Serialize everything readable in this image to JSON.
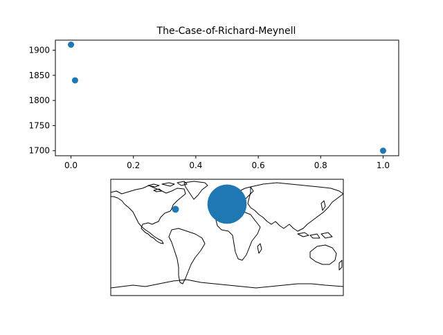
{
  "chart_data": [
    {
      "type": "scatter",
      "title": "The-Case-of-Richard-Meynell",
      "xlabel": "",
      "ylabel": "",
      "x": [
        0.0,
        0.013,
        1.0
      ],
      "y": [
        1911,
        1840,
        1700
      ],
      "xlim": [
        -0.05,
        1.05
      ],
      "ylim": [
        1690,
        1920
      ],
      "xticks": [
        0.0,
        0.2,
        0.4,
        0.6,
        0.8,
        1.0
      ],
      "xtick_labels": [
        "0.0",
        "0.2",
        "0.4",
        "0.6",
        "0.8",
        "1.0"
      ],
      "yticks": [
        1700,
        1750,
        1800,
        1850,
        1900
      ],
      "ytick_labels": [
        "1700",
        "1750",
        "1800",
        "1850",
        "1900"
      ],
      "grid": false,
      "color": "#1f77b4"
    },
    {
      "type": "scatter",
      "title": "",
      "map": "world-coastlines",
      "points": [
        {
          "lon": -79.8,
          "lat": 43.5,
          "weight": 1
        },
        {
          "lon": 0.0,
          "lat": 51.5,
          "weight": 32
        }
      ],
      "color": "#1f77b4"
    }
  ]
}
